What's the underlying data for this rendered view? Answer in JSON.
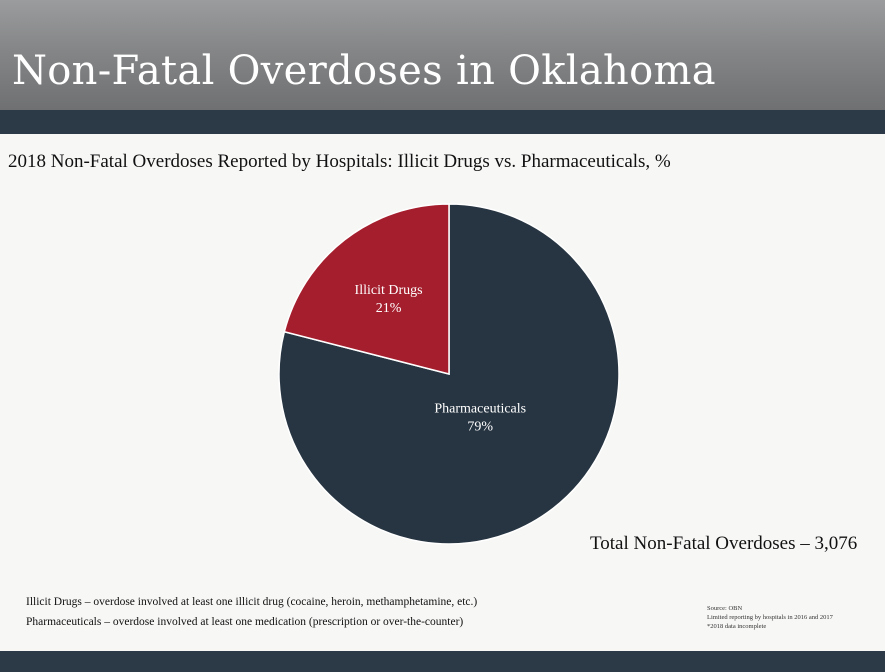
{
  "header": {
    "title": "Non-Fatal Overdoses in Oklahoma"
  },
  "colors": {
    "header_gray": "#858687",
    "band_navy": "#2c3a47",
    "illicit_red": "#a51e2d",
    "pharma_navy": "#273542"
  },
  "chart_data": {
    "type": "pie",
    "title": "2018 Non-Fatal Overdoses Reported by Hospitals: Illicit Drugs vs. Pharmaceuticals, %",
    "slices": [
      {
        "name": "Illicit Drugs",
        "value": 21,
        "label": "21%",
        "color": "#a51e2d"
      },
      {
        "name": "Pharmaceuticals",
        "value": 79,
        "label": "79%",
        "color": "#273542"
      }
    ],
    "start": "12 o'clock",
    "direction": "counterclockwise from top for Illicit Drugs"
  },
  "total": {
    "text": "Total Non-Fatal Overdoses – 3,076"
  },
  "definitions": {
    "illicit": "Illicit Drugs – overdose involved at least one illicit drug (cocaine, heroin, methamphetamine, etc.)",
    "pharma": "Pharmaceuticals – overdose involved at least one medication (prescription or over-the-counter)"
  },
  "source": {
    "line1": "Source: OBN",
    "line2": "Limited reporting by hospitals in 2016 and 2017",
    "line3": "*2018 data incomplete"
  }
}
